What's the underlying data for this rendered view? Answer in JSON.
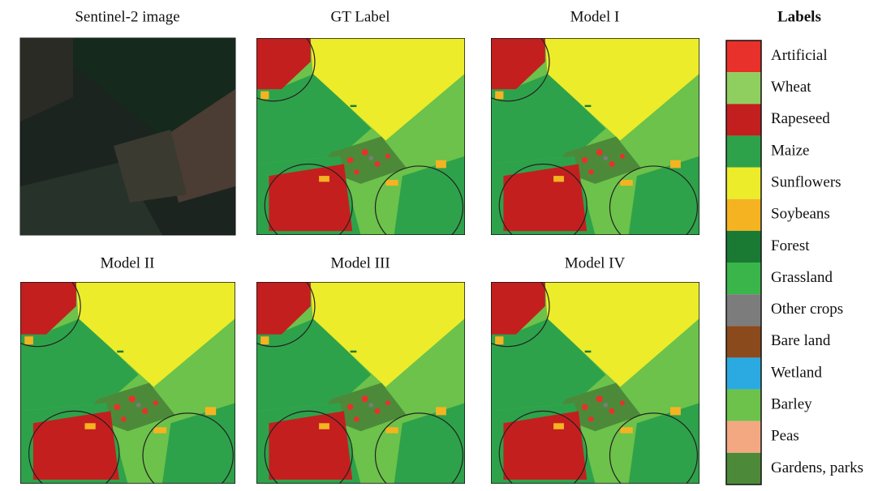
{
  "panels": [
    {
      "title": "Sentinel-2 image"
    },
    {
      "title": "GT Label"
    },
    {
      "title": "Model I"
    },
    {
      "title": "Model II"
    },
    {
      "title": "Model III"
    },
    {
      "title": "Model IV"
    }
  ],
  "legend": {
    "title": "Labels",
    "items": [
      {
        "label": "Artificial",
        "color": "#e8312a"
      },
      {
        "label": "Wheat",
        "color": "#8fcf5f"
      },
      {
        "label": "Rapeseed",
        "color": "#c41f1f"
      },
      {
        "label": "Maize",
        "color": "#2ea24a"
      },
      {
        "label": "Sunflowers",
        "color": "#ecec2a"
      },
      {
        "label": "Soybeans",
        "color": "#f5b321"
      },
      {
        "label": "Forest",
        "color": "#1a7a33"
      },
      {
        "label": "Grassland",
        "color": "#3ab54a"
      },
      {
        "label": "Other crops",
        "color": "#7c7c7c"
      },
      {
        "label": "Bare land",
        "color": "#8a4a1c"
      },
      {
        "label": "Wetland",
        "color": "#2aaae0"
      },
      {
        "label": "Barley",
        "color": "#6cc24a"
      },
      {
        "label": "Peas",
        "color": "#f3a882"
      },
      {
        "label": "Gardens, parks",
        "color": "#4c8a3a"
      }
    ]
  }
}
